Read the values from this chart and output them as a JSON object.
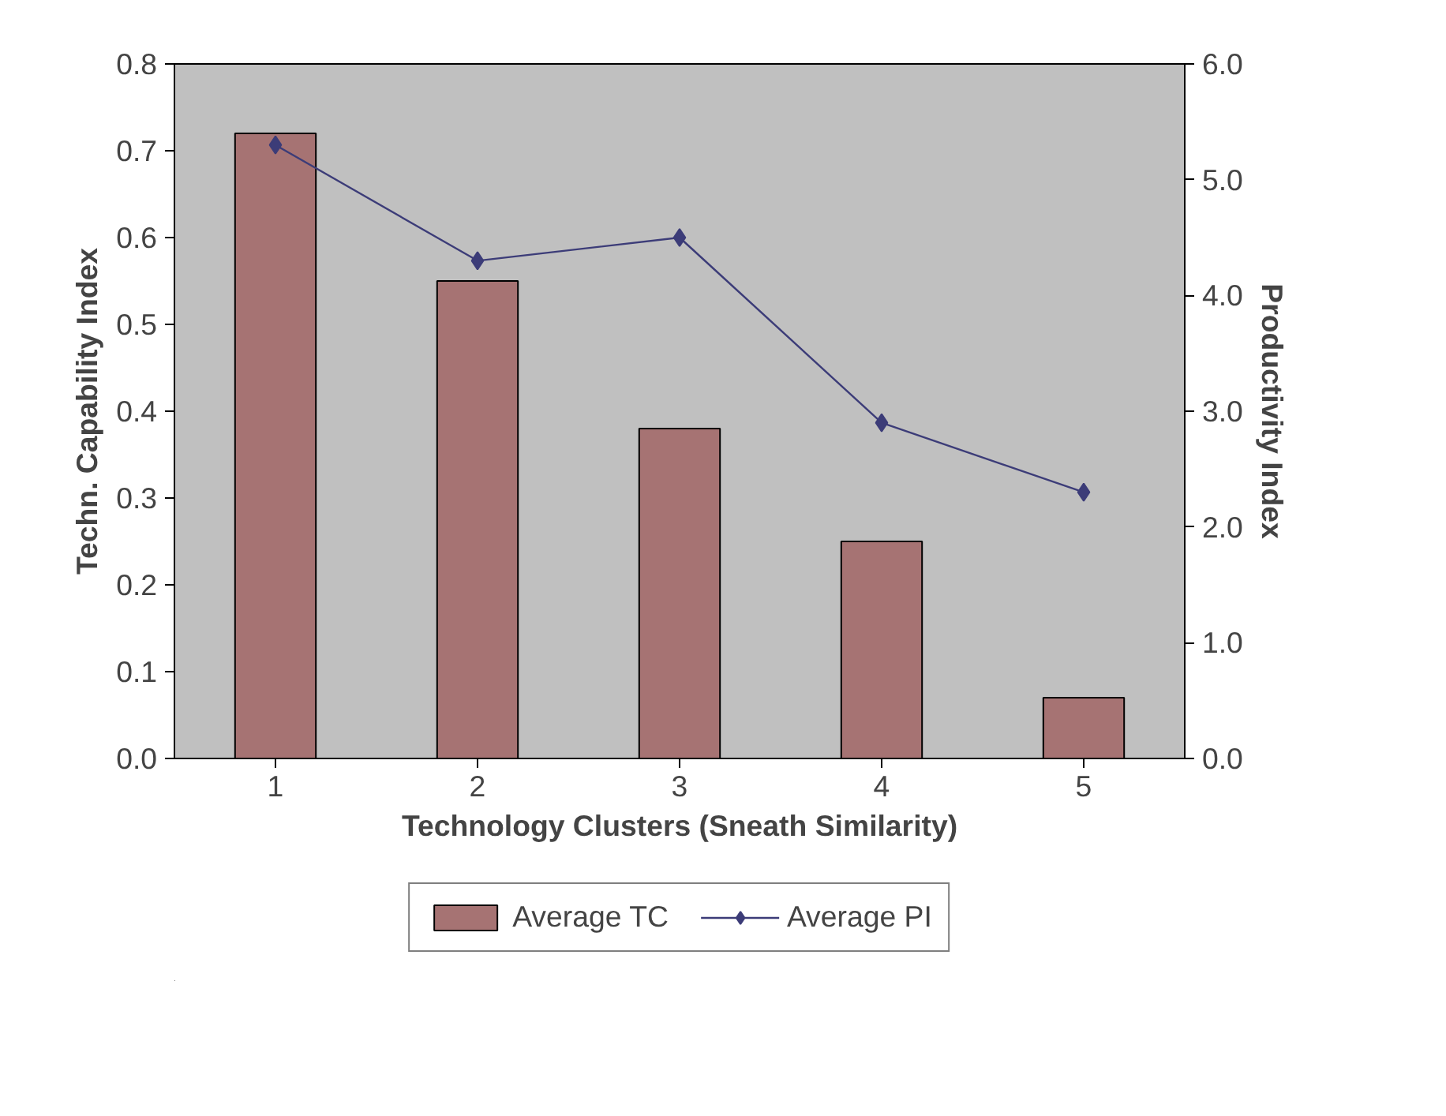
{
  "chart_data": {
    "type": "bar",
    "xlabel": "Technology Clusters (Sneath Similarity)",
    "ylabel": "Techn. Capability Index",
    "y2label": "Productivity Index",
    "categories": [
      "1",
      "2",
      "3",
      "4",
      "5"
    ],
    "series": [
      {
        "name": "Average TC",
        "color": "#a67373",
        "values": [
          0.72,
          0.55,
          0.38,
          0.25,
          0.07
        ]
      },
      {
        "name": "Average PI",
        "type": "line",
        "axis": "y2",
        "color": "#3c3c78",
        "marker": "diamond",
        "values": [
          5.3,
          4.3,
          4.5,
          2.9,
          2.3
        ]
      }
    ],
    "ylim": [
      0,
      0.8
    ],
    "yticks": [
      {
        "value": 0,
        "label": "0.0"
      },
      0.1,
      0.2,
      0.3,
      0.4,
      0.5,
      0.6,
      0.7,
      0.8
    ],
    "y2lim": [
      0,
      6
    ],
    "y2ticks": [
      {
        "value": 0,
        "label": "0.0"
      },
      {
        "value": 1,
        "label": "1.0"
      },
      {
        "value": 2,
        "label": "2.0"
      },
      {
        "value": 3,
        "label": "3.0"
      },
      {
        "value": 4,
        "label": "4.0"
      },
      {
        "value": 5,
        "label": "5.0"
      },
      {
        "value": 6,
        "label": "6.0"
      }
    ],
    "grid": false,
    "legend": "bottom"
  }
}
